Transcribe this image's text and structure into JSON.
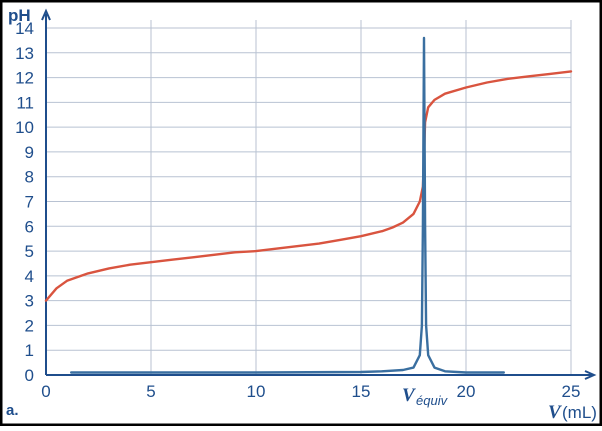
{
  "panel_label": "a.",
  "chart_data": {
    "type": "line",
    "title": "",
    "ylabel": "pH",
    "xlabel_symbol": "V",
    "xlabel_unit": "(mL)",
    "xlim": [
      0,
      25
    ],
    "ylim": [
      0,
      14
    ],
    "x_ticks": [
      0,
      5,
      10,
      15,
      20,
      25
    ],
    "y_ticks": [
      0,
      1,
      2,
      3,
      4,
      5,
      6,
      7,
      8,
      9,
      10,
      11,
      12,
      13,
      14
    ],
    "grid": true,
    "annotations": [
      {
        "text": "V",
        "subscript": "équiv",
        "x": 18
      }
    ],
    "colors": {
      "frame": "#000000",
      "axis": "#1f4e8c",
      "grid": "#b8c2d2",
      "red": "#d9543f",
      "blue": "#3a6fa0"
    },
    "series": [
      {
        "color": "#d9543f",
        "x": [
          0,
          0.5,
          1,
          2,
          3,
          4,
          5,
          6,
          7,
          8,
          9,
          10,
          11,
          12,
          13,
          14,
          15,
          16,
          16.5,
          17,
          17.5,
          17.8,
          17.95,
          18.0,
          18.05,
          18.2,
          18.5,
          19,
          20,
          21,
          22,
          23,
          24,
          25
        ],
        "y": [
          3.0,
          3.5,
          3.8,
          4.1,
          4.3,
          4.45,
          4.55,
          4.65,
          4.75,
          4.85,
          4.95,
          5.0,
          5.1,
          5.2,
          5.3,
          5.45,
          5.6,
          5.8,
          5.95,
          6.15,
          6.5,
          7.0,
          7.6,
          8.8,
          10.2,
          10.8,
          11.1,
          11.35,
          11.6,
          11.8,
          11.95,
          12.05,
          12.15,
          12.25
        ]
      },
      {
        "color": "#3a6fa0",
        "x": [
          1.2,
          5,
          10,
          15,
          16,
          17,
          17.5,
          17.8,
          17.9,
          17.95,
          18.0,
          18.05,
          18.1,
          18.2,
          18.5,
          19,
          20,
          21,
          21.8
        ],
        "y": [
          0.1,
          0.1,
          0.1,
          0.12,
          0.15,
          0.2,
          0.3,
          0.8,
          2.0,
          6.0,
          13.6,
          6.0,
          2.0,
          0.8,
          0.3,
          0.15,
          0.1,
          0.1,
          0.1
        ]
      }
    ]
  }
}
